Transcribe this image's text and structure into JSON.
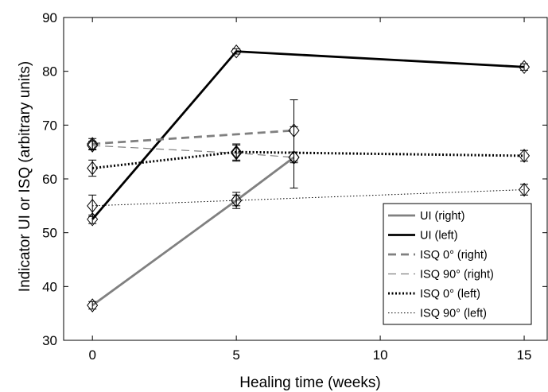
{
  "chart_data": {
    "type": "line",
    "title": "",
    "xlabel": "Healing time (weeks)",
    "ylabel": "Indicator UI or ISQ (arbitrary units)",
    "xlim": [
      -1,
      15.8
    ],
    "ylim": [
      30,
      90
    ],
    "xticks": [
      0,
      5,
      10,
      15
    ],
    "yticks": [
      30,
      40,
      50,
      60,
      70,
      80,
      90
    ],
    "xtick_labels": [
      "0",
      "5",
      "10",
      "15"
    ],
    "ytick_labels": [
      "30",
      "40",
      "50",
      "60",
      "70",
      "80",
      "90"
    ],
    "grid": false,
    "legend_position": "bottom-right",
    "series": [
      {
        "name": "UI (right)",
        "color": "#808080",
        "style": "solid-thick",
        "points": [
          {
            "x": 0,
            "y": 36.5,
            "err": 0.7
          },
          {
            "x": 5,
            "y": 56.0,
            "err": 1.5
          },
          {
            "x": 7,
            "y": 64.0,
            "err": 1.0
          }
        ]
      },
      {
        "name": "UI (left)",
        "color": "#000000",
        "style": "solid-thick",
        "points": [
          {
            "x": 0,
            "y": 52.5,
            "err": 0.8
          },
          {
            "x": 5,
            "y": 83.7,
            "err": 0.5
          },
          {
            "x": 15,
            "y": 80.8,
            "err": 0.6
          }
        ]
      },
      {
        "name": "ISQ 0° (right)",
        "color": "#808080",
        "style": "dashed-thick",
        "points": [
          {
            "x": 0,
            "y": 66.5,
            "err": 1.0
          },
          {
            "x": 7,
            "y": 69.0,
            "err": 5.7
          }
        ]
      },
      {
        "name": "ISQ 90° (right)",
        "color": "#808080",
        "style": "dashed-thin",
        "points": [
          {
            "x": 0,
            "y": 66.2,
            "err": 0.8
          },
          {
            "x": 5,
            "y": 64.8,
            "err": 1.5
          },
          {
            "x": 7,
            "y": 64.0,
            "err": 5.7
          }
        ]
      },
      {
        "name": "ISQ 0° (left)",
        "color": "#000000",
        "style": "dotted-thick",
        "points": [
          {
            "x": 0,
            "y": 62.0,
            "err": 1.5
          },
          {
            "x": 5,
            "y": 65.0,
            "err": 1.5
          },
          {
            "x": 15,
            "y": 64.3,
            "err": 1.0
          }
        ]
      },
      {
        "name": "ISQ 90° (left)",
        "color": "#000000",
        "style": "dotted-thin",
        "points": [
          {
            "x": 0,
            "y": 55.0,
            "err": 2.0
          },
          {
            "x": 5,
            "y": 56.0,
            "err": 1.0
          },
          {
            "x": 15,
            "y": 58.0,
            "err": 1.0
          }
        ]
      }
    ]
  }
}
